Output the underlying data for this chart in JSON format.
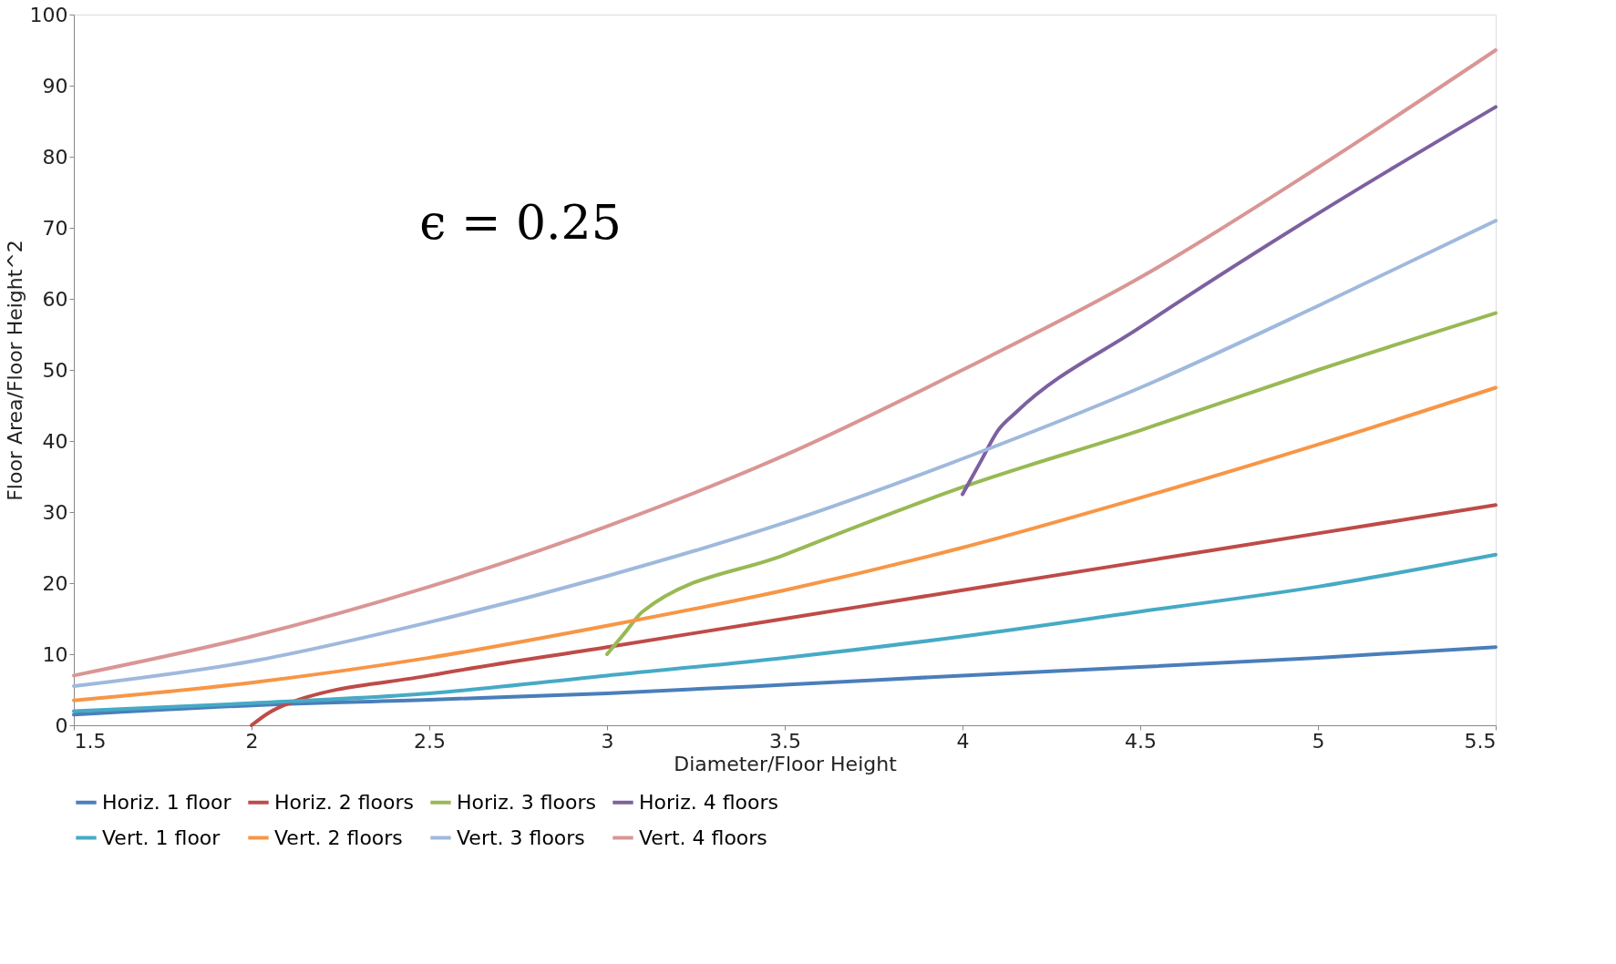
{
  "chart_data": {
    "type": "line",
    "xlabel": "Diameter/Floor Height",
    "ylabel": "Floor Area/Floor Height^2",
    "xlim": [
      1.5,
      5.5
    ],
    "xticks": [
      1.5,
      2,
      2.5,
      3,
      3.5,
      4,
      4.5,
      5,
      5.5
    ],
    "ylim": [
      0,
      100
    ],
    "yticks": [
      0,
      10,
      20,
      30,
      40,
      50,
      60,
      70,
      80,
      90,
      100
    ],
    "grid": false,
    "legend": "bottom",
    "line_style": "solid",
    "marker": "none",
    "annotations": [
      "ϵ = 0.25"
    ],
    "series": [
      {
        "name": "Horiz. 1 floor",
        "color": "#4a7ebb",
        "x": [
          1.5,
          2,
          2.5,
          3,
          3.5,
          4,
          4.5,
          5,
          5.5
        ],
        "values": [
          1.5,
          2.8,
          3.6,
          4.5,
          5.7,
          7,
          8.2,
          9.5,
          11
        ]
      },
      {
        "name": "Horiz. 2 floors",
        "color": "#be4b48",
        "x": [
          2,
          2.05,
          2.1,
          2.5,
          3,
          3.5,
          4,
          4.5,
          5,
          5.5
        ],
        "values": [
          0,
          1.8,
          3,
          7,
          11,
          15,
          19,
          23,
          27,
          31
        ]
      },
      {
        "name": "Horiz. 3 floors",
        "color": "#98b954",
        "x": [
          3,
          3.05,
          3.1,
          3.5,
          4,
          4.5,
          5,
          5.5
        ],
        "values": [
          10,
          13,
          16,
          24,
          33.5,
          41.5,
          50,
          58
        ]
      },
      {
        "name": "Horiz. 4 floors",
        "color": "#7d60a0",
        "x": [
          4,
          4.05,
          4.1,
          4.15,
          4.5,
          5,
          5.5
        ],
        "values": [
          32.5,
          37,
          41.5,
          44,
          56,
          72,
          87
        ]
      },
      {
        "name": "Vert. 1 floor",
        "color": "#46aac5",
        "x": [
          1.5,
          2,
          2.5,
          3,
          3.5,
          4,
          4.5,
          5,
          5.5
        ],
        "values": [
          2,
          3.1,
          4.5,
          7,
          9.5,
          12.5,
          16,
          19.5,
          24
        ]
      },
      {
        "name": "Vert. 2 floors",
        "color": "#f79646",
        "x": [
          1.5,
          2,
          2.5,
          3,
          3.5,
          4,
          4.5,
          5,
          5.5
        ],
        "values": [
          3.5,
          6,
          9.5,
          14,
          19,
          25,
          32,
          39.5,
          47.5
        ]
      },
      {
        "name": "Vert. 3 floors",
        "color": "#9fb9dd",
        "x": [
          1.5,
          2,
          2.5,
          3,
          3.5,
          4,
          4.5,
          5,
          5.5
        ],
        "values": [
          5.5,
          9,
          14.5,
          21,
          28.5,
          37.5,
          47.5,
          59,
          71
        ]
      },
      {
        "name": "Vert. 4 floors",
        "color": "#d99694",
        "x": [
          1.5,
          2,
          2.5,
          3,
          3.5,
          4,
          4.5,
          5,
          5.5
        ],
        "values": [
          7,
          12.5,
          19.5,
          28,
          38,
          50,
          63,
          78.5,
          95
        ]
      }
    ]
  }
}
